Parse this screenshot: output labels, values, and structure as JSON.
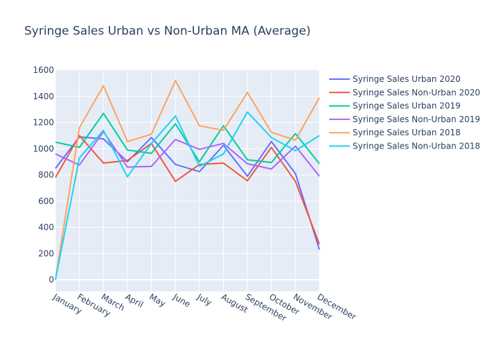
{
  "chart_data": {
    "type": "line",
    "title": "Syringe Sales Urban vs Non-Urban MA (Average)",
    "xlabel": "",
    "ylabel": "",
    "categories": [
      "January",
      "February",
      "March",
      "April",
      "May",
      "June",
      "July",
      "August",
      "September",
      "October",
      "November",
      "December"
    ],
    "ylim": [
      -90,
      1600
    ],
    "yticks": [
      0,
      200,
      400,
      600,
      800,
      1000,
      1200,
      1400,
      1600
    ],
    "grid": true,
    "legend_position": "right",
    "series": [
      {
        "name": "Syringe Sales Urban 2020",
        "color": "#636efa",
        "values": [
          850,
          1090,
          1075,
          900,
          1085,
          880,
          825,
          1025,
          790,
          1055,
          810,
          230
        ]
      },
      {
        "name": "Syringe Sales Non-Urban 2020",
        "color": "#EF553B",
        "values": [
          780,
          1100,
          890,
          910,
          1040,
          750,
          880,
          890,
          755,
          1010,
          750,
          270
        ]
      },
      {
        "name": "Syringe Sales Urban 2019",
        "color": "#00cc96",
        "values": [
          1050,
          1010,
          1270,
          990,
          965,
          1190,
          900,
          1175,
          915,
          895,
          1115,
          885
        ]
      },
      {
        "name": "Syringe Sales Non-Urban 2019",
        "color": "#ab63fa",
        "values": [
          960,
          875,
          1130,
          860,
          865,
          1070,
          995,
          1040,
          885,
          845,
          1020,
          790
        ]
      },
      {
        "name": "Syringe Sales Urban 2018",
        "color": "#FFA15A",
        "values": [
          0,
          1160,
          1480,
          1055,
          1110,
          1520,
          1175,
          1140,
          1430,
          1125,
          1065,
          1390
        ]
      },
      {
        "name": "Syringe Sales Non-Urban 2018",
        "color": "#19d3f3",
        "values": [
          0,
          930,
          1140,
          785,
          1040,
          1250,
          865,
          960,
          1280,
          1085,
          985,
          1100
        ]
      }
    ]
  }
}
